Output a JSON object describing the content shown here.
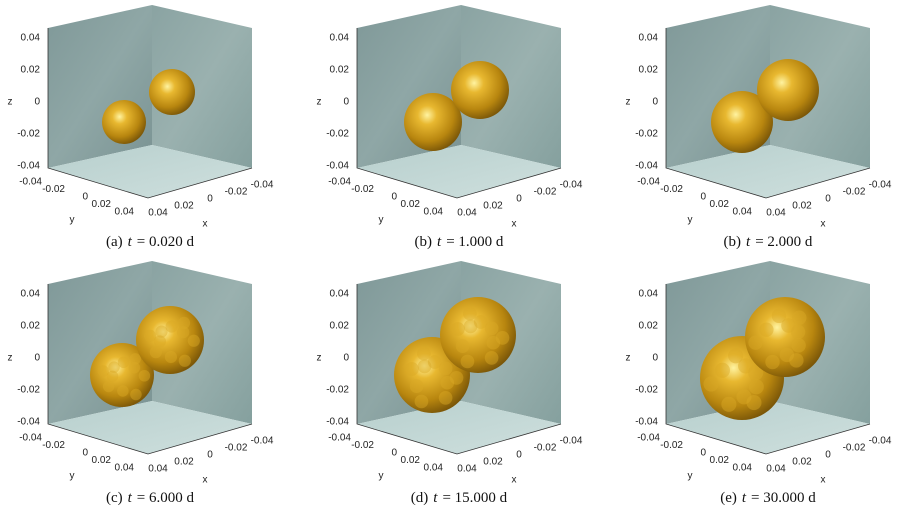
{
  "axes": {
    "z_label": "z",
    "y_label": "y",
    "x_label": "x",
    "z_ticks": [
      "0.04",
      "0.02",
      "0",
      "-0.02",
      "-0.04"
    ],
    "y_ticks": [
      "-0.04",
      "-0.02",
      "0",
      "0.02",
      "0.04"
    ],
    "x_ticks": [
      "0.04",
      "0.02",
      "0",
      "-0.02",
      "-0.04"
    ]
  },
  "panels": [
    {
      "label": "(a)",
      "symbol": "t",
      "rest": "= 0.020 d"
    },
    {
      "label": "(b)",
      "symbol": "t",
      "rest": "= 1.000 d"
    },
    {
      "label": "(b)",
      "symbol": "t",
      "rest": "= 2.000 d"
    },
    {
      "label": "(c)",
      "symbol": "t",
      "rest": "= 6.000 d"
    },
    {
      "label": "(d)",
      "symbol": "t",
      "rest": "= 15.000 d"
    },
    {
      "label": "(e)",
      "symbol": "t",
      "rest": "= 30.000 d"
    }
  ]
}
